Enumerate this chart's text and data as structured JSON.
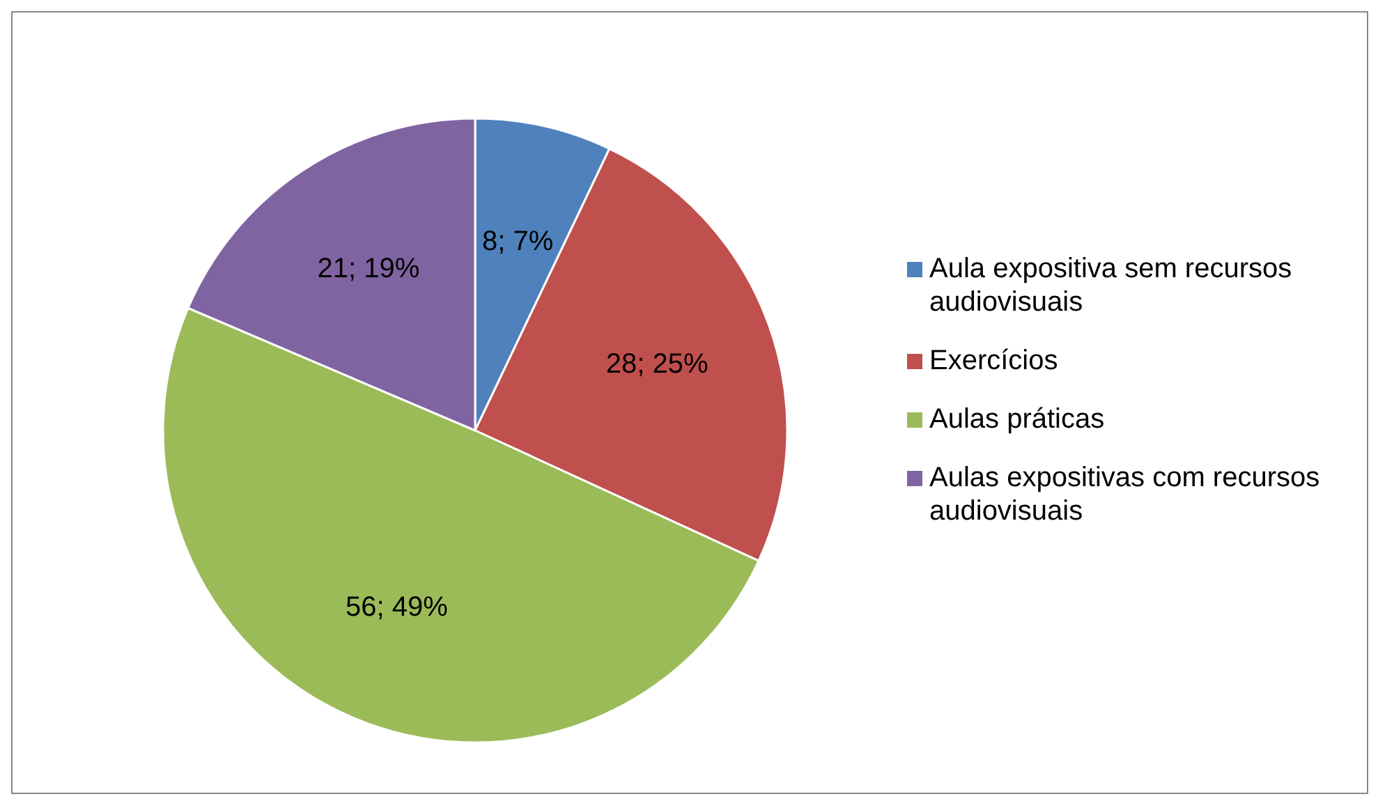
{
  "chart_data": {
    "type": "pie",
    "categories": [
      "Aula expositiva sem recursos audiovisuais",
      "Exercícios",
      "Aulas práticas",
      "Aulas expositivas com recursos audiovisuais"
    ],
    "values": [
      8,
      28,
      56,
      21
    ],
    "value_labels": [
      "8; 7%",
      "28; 25%",
      "56; 49%",
      "21; 19%"
    ],
    "colors": [
      "#4f81bd",
      "#c0504d",
      "#9bbb59",
      "#8064a2"
    ],
    "legend": "right"
  }
}
